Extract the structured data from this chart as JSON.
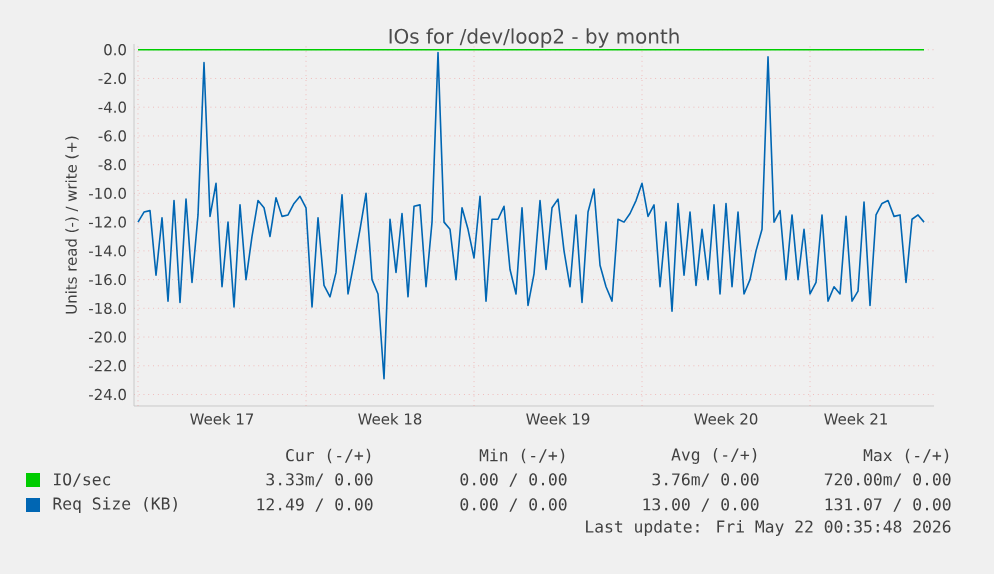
{
  "chart_data": {
    "type": "line",
    "title": "IOs for /dev/loop2 - by month",
    "ylabel": "Units read (-) / write (+)",
    "xlim": [
      "2026-04-19T20:00",
      "2026-05-23T04:00"
    ],
    "xticks": [
      {
        "value": "2026-04-20T00:00",
        "label": null
      },
      {
        "value": "2026-04-27T00:00",
        "label": null
      },
      {
        "value": "2026-05-04T00:00",
        "label": null
      },
      {
        "value": "2026-05-11T00:00",
        "label": null
      },
      {
        "value": "2026-05-18T00:00",
        "label": null
      },
      {
        "value": "2026-04-23T12:00",
        "label": "Week 17"
      },
      {
        "value": "2026-04-30T12:00",
        "label": "Week 18"
      },
      {
        "value": "2026-05-07T12:00",
        "label": "Week 19"
      },
      {
        "value": "2026-05-14T12:00",
        "label": "Week 20"
      },
      {
        "value": "2026-05-19T22:00",
        "label": "Week 21"
      }
    ],
    "ylim": [
      -24.8,
      0.4
    ],
    "yticks": [
      {
        "value": 0,
        "label": "0.0"
      },
      {
        "value": -2,
        "label": "-2.0"
      },
      {
        "value": -4,
        "label": "-4.0"
      },
      {
        "value": -6,
        "label": "-6.0"
      },
      {
        "value": -8,
        "label": "-8.0"
      },
      {
        "value": -10,
        "label": "-10.0"
      },
      {
        "value": -12,
        "label": "-12.0"
      },
      {
        "value": -14,
        "label": "-14.0"
      },
      {
        "value": -16,
        "label": "-16.0"
      },
      {
        "value": -18,
        "label": "-18.0"
      },
      {
        "value": -20,
        "label": "-20.0"
      },
      {
        "value": -22,
        "label": "-22.0"
      },
      {
        "value": -24,
        "label": "-24.0"
      }
    ],
    "grid": true,
    "legend": "bottom",
    "x": [
      "2026-04-20T00:00",
      "2026-04-20T06:00",
      "2026-04-20T12:00",
      "2026-04-20T18:00",
      "2026-04-21T00:00",
      "2026-04-21T06:00",
      "2026-04-21T12:00",
      "2026-04-21T18:00",
      "2026-04-22T00:00",
      "2026-04-22T06:00",
      "2026-04-22T12:00",
      "2026-04-22T18:00",
      "2026-04-23T00:00",
      "2026-04-23T06:00",
      "2026-04-23T12:00",
      "2026-04-23T18:00",
      "2026-04-24T00:00",
      "2026-04-24T06:00",
      "2026-04-24T12:00",
      "2026-04-24T18:00",
      "2026-04-25T00:00",
      "2026-04-25T06:00",
      "2026-04-25T12:00",
      "2026-04-25T18:00",
      "2026-04-26T00:00",
      "2026-04-26T06:00",
      "2026-04-26T12:00",
      "2026-04-26T18:00",
      "2026-04-27T00:00",
      "2026-04-27T06:00",
      "2026-04-27T12:00",
      "2026-04-27T18:00",
      "2026-04-28T00:00",
      "2026-04-28T06:00",
      "2026-04-28T12:00",
      "2026-04-28T18:00",
      "2026-04-29T00:00",
      "2026-04-29T06:00",
      "2026-04-29T12:00",
      "2026-04-29T18:00",
      "2026-04-30T00:00",
      "2026-04-30T06:00",
      "2026-04-30T12:00",
      "2026-04-30T18:00",
      "2026-05-01T00:00",
      "2026-05-01T06:00",
      "2026-05-01T12:00",
      "2026-05-01T18:00",
      "2026-05-02T00:00",
      "2026-05-02T06:00",
      "2026-05-02T12:00",
      "2026-05-02T18:00",
      "2026-05-03T00:00",
      "2026-05-03T06:00",
      "2026-05-03T12:00",
      "2026-05-03T18:00",
      "2026-05-04T00:00",
      "2026-05-04T06:00",
      "2026-05-04T12:00",
      "2026-05-04T18:00",
      "2026-05-05T00:00",
      "2026-05-05T06:00",
      "2026-05-05T12:00",
      "2026-05-05T18:00",
      "2026-05-06T00:00",
      "2026-05-06T06:00",
      "2026-05-06T12:00",
      "2026-05-06T18:00",
      "2026-05-07T00:00",
      "2026-05-07T06:00",
      "2026-05-07T12:00",
      "2026-05-07T18:00",
      "2026-05-08T00:00",
      "2026-05-08T06:00",
      "2026-05-08T12:00",
      "2026-05-08T18:00",
      "2026-05-09T00:00",
      "2026-05-09T06:00",
      "2026-05-09T12:00",
      "2026-05-09T18:00",
      "2026-05-10T00:00",
      "2026-05-10T06:00",
      "2026-05-10T12:00",
      "2026-05-10T18:00",
      "2026-05-11T00:00",
      "2026-05-11T06:00",
      "2026-05-11T12:00",
      "2026-05-11T18:00",
      "2026-05-12T00:00",
      "2026-05-12T06:00",
      "2026-05-12T12:00",
      "2026-05-12T18:00",
      "2026-05-13T00:00",
      "2026-05-13T06:00",
      "2026-05-13T12:00",
      "2026-05-13T18:00",
      "2026-05-14T00:00",
      "2026-05-14T06:00",
      "2026-05-14T12:00",
      "2026-05-14T18:00",
      "2026-05-15T00:00",
      "2026-05-15T06:00",
      "2026-05-15T12:00",
      "2026-05-15T18:00",
      "2026-05-16T00:00",
      "2026-05-16T06:00",
      "2026-05-16T12:00",
      "2026-05-16T18:00",
      "2026-05-17T00:00",
      "2026-05-17T06:00",
      "2026-05-17T12:00",
      "2026-05-17T18:00",
      "2026-05-18T00:00",
      "2026-05-18T06:00",
      "2026-05-18T12:00",
      "2026-05-18T18:00",
      "2026-05-19T00:00",
      "2026-05-19T06:00",
      "2026-05-19T12:00",
      "2026-05-19T18:00",
      "2026-05-20T00:00",
      "2026-05-20T06:00",
      "2026-05-20T12:00",
      "2026-05-20T18:00",
      "2026-05-21T00:00",
      "2026-05-21T06:00",
      "2026-05-21T12:00",
      "2026-05-21T18:00",
      "2026-05-22T00:00",
      "2026-05-22T06:00",
      "2026-05-22T12:00",
      "2026-05-22T18:00"
    ],
    "series": [
      {
        "name": "IO/sec",
        "color": "#00cc00",
        "x": [
          "2026-04-20T00:00",
          "2026-05-22T18:00"
        ],
        "values": [
          0,
          0
        ]
      },
      {
        "name": "Req Size (KB)",
        "color": "#0066b3",
        "values": [
          -12.0,
          -11.3,
          -11.2,
          -15.7,
          -11.7,
          -17.5,
          -10.5,
          -17.6,
          -10.4,
          -16.2,
          -11.5,
          -0.9,
          -11.6,
          -9.3,
          -16.5,
          -12.0,
          -17.9,
          -10.8,
          -16.0,
          -13.0,
          -10.5,
          -11.0,
          -13.0,
          -10.3,
          -11.6,
          -11.5,
          -10.7,
          -10.2,
          -11.0,
          -17.9,
          -11.7,
          -16.4,
          -17.2,
          -15.5,
          -10.1,
          -17.0,
          -14.8,
          -12.5,
          -10.0,
          -16.0,
          -17.0,
          -22.9,
          -11.8,
          -15.5,
          -11.4,
          -17.2,
          -10.9,
          -10.8,
          -16.5,
          -12.0,
          -0.2,
          -12.0,
          -12.5,
          -16.0,
          -11.0,
          -12.5,
          -14.5,
          -10.2,
          -17.5,
          -11.8,
          -11.8,
          -10.9,
          -15.3,
          -17.0,
          -11.0,
          -17.8,
          -15.6,
          -10.5,
          -15.3,
          -11.0,
          -10.4,
          -14.0,
          -16.5,
          -11.5,
          -17.6,
          -11.3,
          -9.7,
          -15.0,
          -16.5,
          -17.5,
          -11.8,
          -12.0,
          -11.4,
          -10.5,
          -9.3,
          -11.6,
          -10.8,
          -16.5,
          -12.0,
          -18.2,
          -10.7,
          -15.7,
          -11.3,
          -16.4,
          -12.5,
          -16.0,
          -10.8,
          -17.0,
          -10.7,
          -16.5,
          -11.3,
          -17.0,
          -16.0,
          -14.0,
          -12.5,
          -0.5,
          -12.0,
          -11.2,
          -16.0,
          -11.5,
          -16.0,
          -12.5,
          -17.0,
          -16.2,
          -11.5,
          -17.5,
          -16.5,
          -17.0,
          -11.6,
          -17.5,
          -16.8,
          -10.6,
          -17.8,
          -11.5,
          -10.7,
          -10.5,
          -11.6,
          -11.5,
          -16.2,
          -11.8,
          -11.5,
          -12.0
        ]
      }
    ],
    "annotations": [
      "Cur (-/+)",
      "Min (-/+)",
      "Avg (-/+)",
      "Max (-/+)",
      "3.33m/ 0.00",
      "0.00 / 0.00",
      "3.76m/ 0.00",
      "720.00m/ 0.00",
      "12.49 / 0.00",
      "0.00 / 0.00",
      "13.00 / 0.00",
      "131.07 / 0.00",
      "Last update: Fri May 22 00:35:48 2026"
    ]
  }
}
